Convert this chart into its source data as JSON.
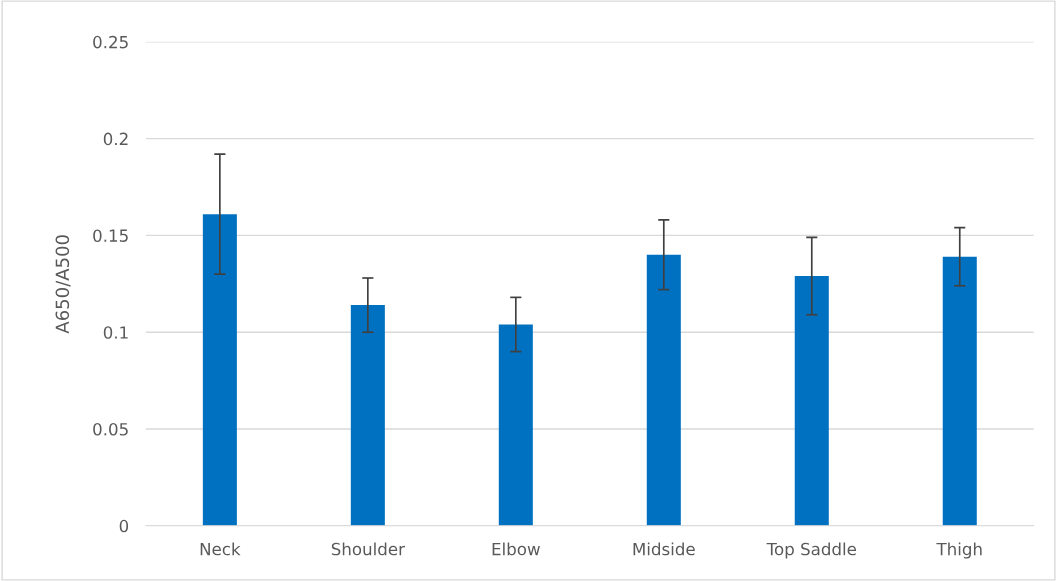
{
  "chart_data": {
    "type": "bar",
    "ylabel": "A650/A500",
    "categories": [
      "Neck",
      "Shoulder",
      "Elbow",
      "Midside",
      "Top Saddle",
      "Thigh"
    ],
    "values": [
      0.161,
      0.114,
      0.104,
      0.14,
      0.129,
      0.139
    ],
    "errors": [
      0.031,
      0.014,
      0.014,
      0.018,
      0.02,
      0.015
    ],
    "color": "#0070c0",
    "ylim": [
      0,
      0.25
    ],
    "yticks": [
      0,
      0.05,
      0.1,
      0.15,
      0.2,
      0.25
    ],
    "grid": "y"
  }
}
